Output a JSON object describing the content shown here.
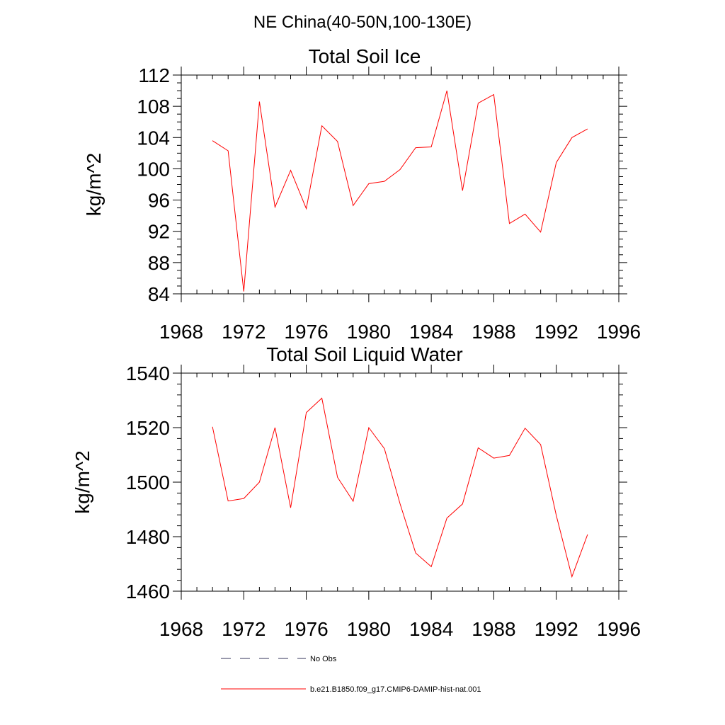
{
  "figure": {
    "suptitle": "NE China(40-50N,100-130E)"
  },
  "legend": {
    "items": [
      {
        "label": "No Obs",
        "style": "dashed",
        "color": "#33335a"
      },
      {
        "label": "b.e21.B1850.f09_g17.CMIP6-DAMIP-hist-nat.001",
        "style": "solid",
        "color": "#ff0000"
      }
    ]
  },
  "chart_data": [
    {
      "type": "line",
      "title": "Total Soil Ice",
      "xlabel": "",
      "ylabel": "kg/m^2",
      "xlim": [
        1968,
        1996
      ],
      "ylim": [
        84,
        112
      ],
      "xticks": [
        1968,
        1972,
        1976,
        1980,
        1984,
        1988,
        1992,
        1996
      ],
      "yticks": [
        84,
        88,
        92,
        96,
        100,
        104,
        108,
        112
      ],
      "x_minor_step": 1,
      "y_minor_step": 1,
      "grid": false,
      "series": [
        {
          "name": "b.e21.B1850.f09_g17.CMIP6-DAMIP-hist-nat.001",
          "color": "#ff0000",
          "x": [
            1970,
            1971,
            1972,
            1973,
            1974,
            1975,
            1976,
            1977,
            1978,
            1979,
            1980,
            1981,
            1982,
            1983,
            1984,
            1985,
            1986,
            1987,
            1988,
            1989,
            1990,
            1991,
            1992,
            1993,
            1994
          ],
          "y": [
            103.6,
            102.3,
            84.3,
            108.6,
            95.1,
            99.8,
            94.9,
            105.5,
            103.5,
            95.3,
            98.1,
            98.4,
            99.9,
            102.7,
            102.8,
            110.0,
            97.2,
            108.4,
            109.5,
            93.0,
            94.2,
            91.9,
            100.8,
            104.0,
            105.1
          ]
        }
      ]
    },
    {
      "type": "line",
      "title": "Total Soil Liquid Water",
      "xlabel": "",
      "ylabel": "kg/m^2",
      "xlim": [
        1968,
        1996
      ],
      "ylim": [
        1460,
        1540
      ],
      "xticks": [
        1968,
        1972,
        1976,
        1980,
        1984,
        1988,
        1992,
        1996
      ],
      "yticks": [
        1460,
        1480,
        1500,
        1520,
        1540
      ],
      "x_minor_step": 1,
      "y_minor_step": 4,
      "grid": false,
      "series": [
        {
          "name": "b.e21.B1850.f09_g17.CMIP6-DAMIP-hist-nat.001",
          "color": "#ff0000",
          "x": [
            1970,
            1971,
            1972,
            1973,
            1974,
            1975,
            1976,
            1977,
            1978,
            1979,
            1980,
            1981,
            1982,
            1983,
            1984,
            1985,
            1986,
            1987,
            1988,
            1989,
            1990,
            1991,
            1992,
            1993,
            1994
          ],
          "y": [
            1520.3,
            1493.1,
            1494.0,
            1500.0,
            1520.0,
            1490.6,
            1525.5,
            1530.8,
            1501.8,
            1493.0,
            1520.0,
            1512.3,
            1492.1,
            1474.0,
            1469.0,
            1486.8,
            1492.0,
            1512.6,
            1508.8,
            1509.8,
            1519.8,
            1513.8,
            1487.8,
            1465.3,
            1480.8
          ]
        }
      ]
    }
  ]
}
